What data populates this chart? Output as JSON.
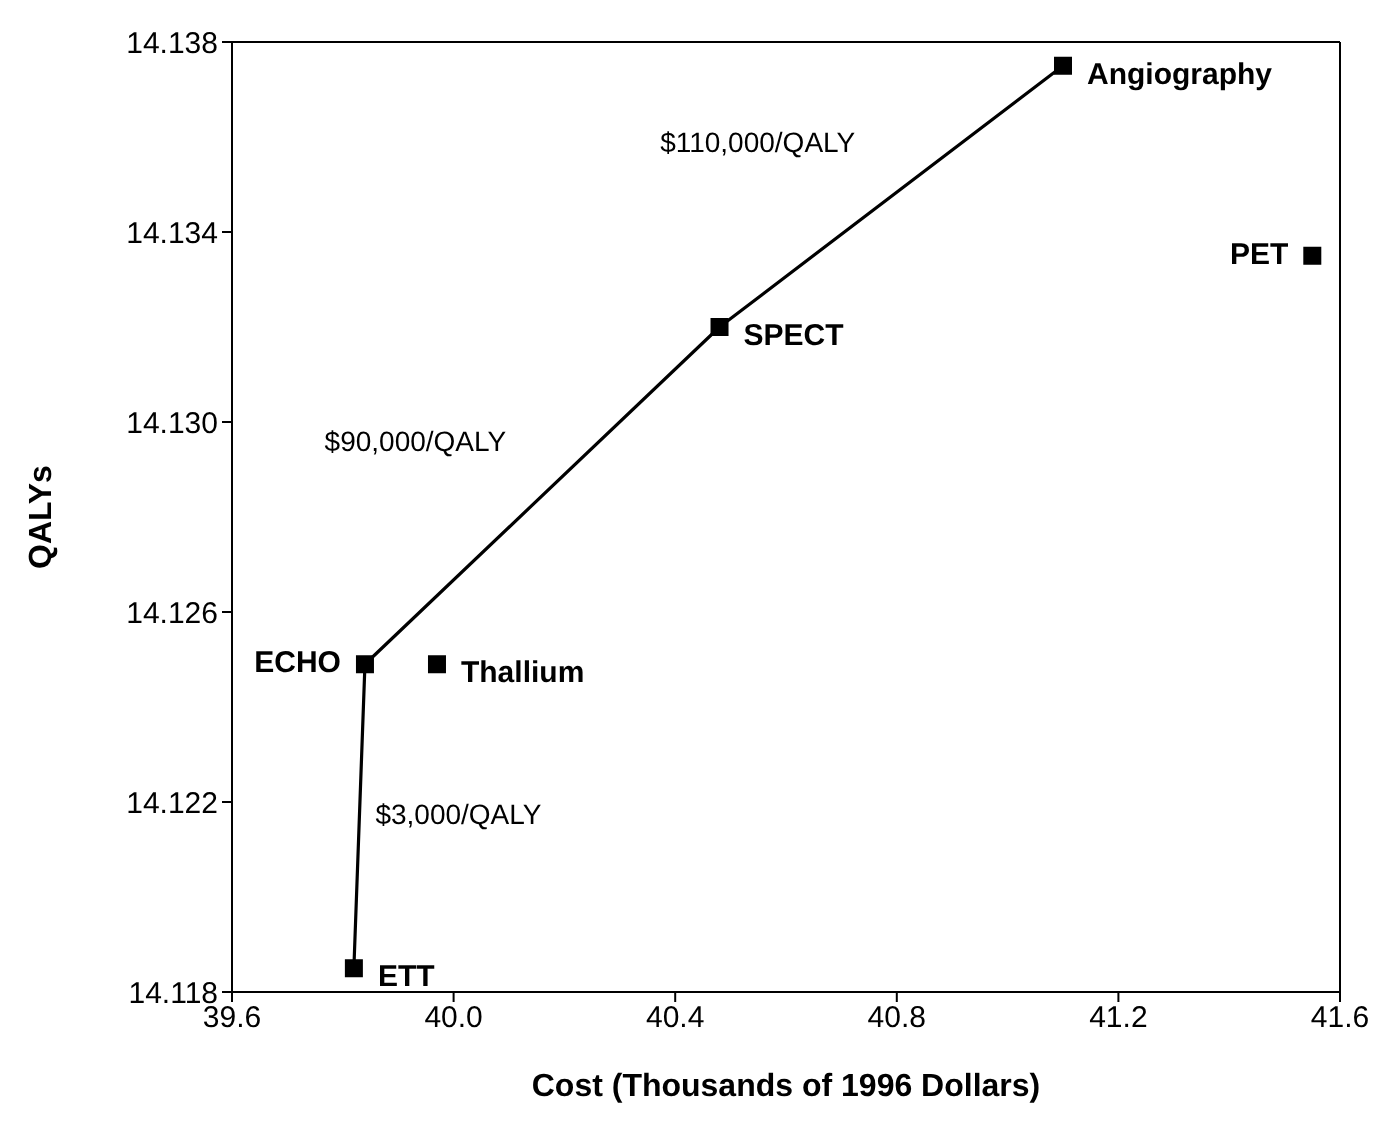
{
  "chart_data": {
    "type": "scatter",
    "xlabel": "Cost (Thousands of 1996 Dollars)",
    "ylabel": "QALYs",
    "xlim": [
      39.6,
      41.6
    ],
    "ylim": [
      14.118,
      14.138
    ],
    "xticks": [
      39.6,
      {
        "value": 40,
        "label": "40.0"
      },
      40.4,
      40.8,
      41.2,
      41.6
    ],
    "yticks": [
      {
        "value": 14.118,
        "label": "14.118"
      },
      14.122,
      14.126,
      {
        "value": 14.13,
        "label": "14.130"
      },
      14.134,
      14.138
    ],
    "grid": false,
    "legend": false,
    "marker": "square",
    "series": [
      {
        "type": "line",
        "color": "#000000",
        "line_style": "solid",
        "x": [
          39.82,
          39.84,
          40.48,
          41.1
        ],
        "values": [
          14.1185,
          14.1249,
          14.132,
          14.1375
        ]
      },
      {
        "color": "#000000",
        "x": [
          39.97,
          41.55
        ],
        "values": [
          14.1249,
          14.1335
        ]
      }
    ],
    "annotations": [
      {
        "text": "ETT",
        "x": 39.82,
        "y": 14.1185
      },
      {
        "text": "ECHO",
        "x": 39.84,
        "y": 14.1249
      },
      {
        "text": "Thallium",
        "x": 39.97,
        "y": 14.1249
      },
      {
        "text": "SPECT",
        "x": 40.48,
        "y": 14.132
      },
      {
        "text": "Angiography",
        "x": 41.1,
        "y": 14.1375
      },
      {
        "text": "PET",
        "x": 41.55,
        "y": 14.1335
      },
      "$110,000/QALY",
      "$90,000/QALY",
      "$3,000/QALY"
    ]
  }
}
